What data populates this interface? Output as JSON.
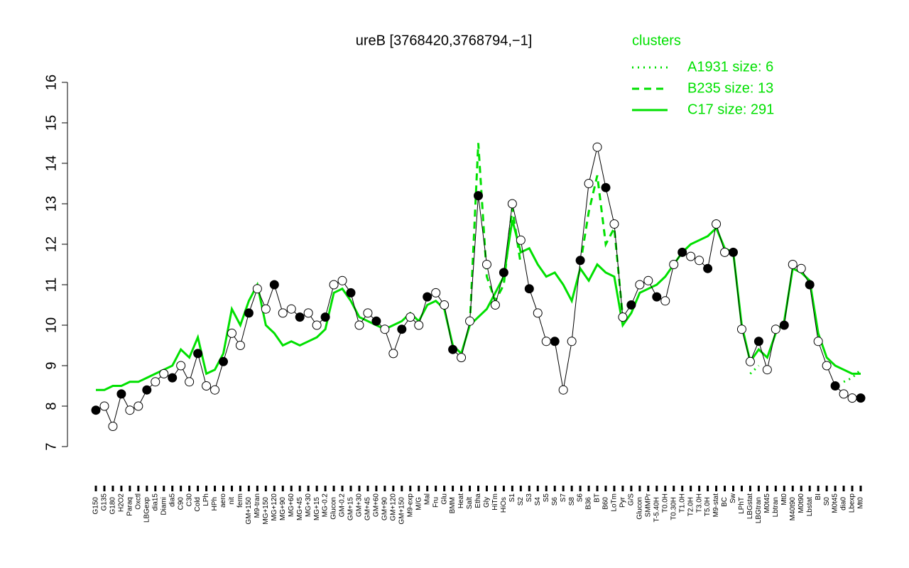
{
  "chart_data": {
    "type": "line",
    "title": "ureB [3768420,3768794,−1]",
    "legend_title": "clusters",
    "legend_position": "top right",
    "categories": [
      "G150",
      "G135",
      "G180",
      "H2O2",
      "Paraq",
      "Oxctl",
      "LBGexp",
      "dia15",
      "Diami",
      "dia5",
      "C90",
      "C30",
      "Cold",
      "LPh",
      "HPh",
      "aero",
      "nit",
      "ferm",
      "GM+150",
      "M9-tran",
      "MG+150",
      "MG+120",
      "MG+90",
      "MG+60",
      "MG+45",
      "MG+30",
      "MG+15",
      "MG-0.2",
      "Glucon",
      "GM-0.2",
      "GM+15",
      "GM+30",
      "GM+45",
      "GM+60",
      "GM+90",
      "GM+120",
      "GM+150",
      "M9-exp",
      "M/G",
      "Mal",
      "Fru",
      "Glu",
      "BMM",
      "Heat",
      "Salt",
      "Etha",
      "Gly",
      "HiTm",
      "HiOs",
      "S1",
      "S2",
      "S3",
      "S4",
      "S5",
      "S6",
      "S7",
      "S8",
      "S6",
      "B36",
      "BT",
      "B60",
      "LoTm",
      "Pyr",
      "G/S",
      "Glucon",
      "SMMPr",
      "T-5.40H",
      "T0.0H",
      "T0.30H",
      "T1.0H",
      "T2.0H",
      "T3.0H",
      "T5.0H",
      "M9-stat",
      "BC",
      "Sw",
      "LPhT",
      "LBGstat",
      "LBGtran",
      "M0t45",
      "Lbtran",
      "Mt0",
      "M40t90",
      "M0t90",
      "Lbstat",
      "BI",
      "S0",
      "M0t45",
      "dia0",
      "Lbexp",
      "Mt0"
    ],
    "values": [
      7.9,
      8.0,
      7.5,
      8.3,
      7.9,
      8.0,
      8.4,
      8.6,
      8.8,
      8.7,
      9.0,
      8.6,
      9.3,
      8.5,
      8.4,
      9.1,
      9.8,
      9.5,
      10.3,
      10.9,
      10.4,
      11.0,
      10.3,
      10.4,
      10.2,
      10.3,
      10.0,
      10.2,
      11.0,
      11.1,
      10.8,
      10.0,
      10.3,
      10.1,
      9.9,
      9.3,
      9.9,
      10.2,
      10.0,
      10.7,
      10.8,
      10.5,
      9.4,
      9.2,
      10.1,
      13.2,
      11.5,
      10.5,
      11.3,
      13.0,
      12.1,
      10.9,
      10.3,
      9.6,
      9.6,
      8.4,
      9.6,
      11.6,
      13.5,
      14.4,
      13.4,
      12.5,
      10.2,
      10.5,
      11.0,
      11.1,
      10.7,
      10.6,
      11.5,
      11.8,
      11.7,
      11.6,
      11.4,
      12.5,
      11.8,
      11.8,
      9.9,
      9.1,
      9.6,
      8.9,
      9.9,
      10.0,
      11.5,
      11.4,
      11.0,
      9.6,
      9.0,
      8.5,
      8.3,
      8.2,
      8.2
    ],
    "color": "#000000",
    "series": [
      {
        "name": "A1931 size: 6",
        "color": "#00e000",
        "dash": "dotted",
        "values": [
          null,
          null,
          null,
          null,
          null,
          null,
          null,
          null,
          null,
          null,
          null,
          null,
          null,
          null,
          null,
          null,
          null,
          null,
          null,
          null,
          null,
          null,
          null,
          null,
          null,
          null,
          null,
          null,
          null,
          null,
          null,
          null,
          null,
          null,
          null,
          null,
          null,
          null,
          null,
          null,
          null,
          null,
          null,
          null,
          null,
          null,
          null,
          null,
          null,
          null,
          null,
          null,
          null,
          null,
          null,
          null,
          null,
          null,
          null,
          null,
          null,
          null,
          null,
          null,
          null,
          null,
          null,
          null,
          null,
          null,
          null,
          null,
          null,
          null,
          null,
          null,
          null,
          8.8,
          9.0,
          null,
          null,
          null,
          null,
          null,
          null,
          null,
          null,
          null,
          8.6,
          8.7,
          8.9
        ]
      },
      {
        "name": "B235 size: 13",
        "color": "#00e000",
        "dash": "dashed",
        "values": [
          null,
          null,
          null,
          null,
          null,
          null,
          null,
          null,
          null,
          null,
          null,
          null,
          null,
          null,
          null,
          null,
          null,
          null,
          null,
          null,
          null,
          null,
          null,
          null,
          null,
          null,
          null,
          null,
          null,
          null,
          null,
          null,
          null,
          null,
          null,
          null,
          null,
          null,
          null,
          null,
          null,
          null,
          null,
          null,
          10.0,
          14.5,
          11.2,
          10.6,
          11.0,
          12.9,
          11.5,
          null,
          null,
          null,
          null,
          null,
          null,
          11.5,
          12.8,
          13.7,
          12.0,
          12.4,
          10.2,
          null,
          null,
          null,
          null,
          null,
          null,
          null,
          null,
          null,
          null,
          null,
          null,
          null,
          null,
          null,
          null,
          null,
          null,
          null,
          null,
          null,
          null,
          null,
          null,
          null,
          null,
          null,
          null
        ]
      },
      {
        "name": "C17 size: 291",
        "color": "#00e000",
        "dash": "solid",
        "values": [
          8.4,
          8.4,
          8.5,
          8.5,
          8.6,
          8.6,
          8.7,
          8.8,
          8.9,
          9.0,
          9.4,
          9.2,
          9.7,
          8.8,
          8.9,
          9.3,
          10.4,
          10.0,
          10.6,
          11.0,
          10.0,
          9.8,
          9.5,
          9.6,
          9.5,
          9.6,
          9.7,
          9.9,
          10.8,
          10.9,
          10.6,
          10.2,
          10.1,
          10.0,
          9.9,
          10.0,
          10.1,
          10.3,
          10.1,
          10.5,
          10.6,
          10.4,
          9.5,
          9.3,
          10.0,
          10.2,
          10.4,
          10.8,
          11.2,
          12.6,
          11.8,
          11.9,
          11.5,
          11.2,
          11.3,
          11.0,
          10.6,
          11.4,
          11.1,
          11.5,
          11.3,
          11.2,
          10.0,
          10.3,
          10.8,
          10.9,
          11.0,
          11.2,
          11.5,
          11.8,
          12.0,
          12.1,
          12.2,
          12.4,
          11.9,
          11.8,
          10.0,
          9.1,
          9.4,
          9.2,
          9.8,
          10.1,
          11.4,
          11.3,
          11.1,
          9.8,
          9.2,
          9.0,
          8.9,
          8.8,
          8.8
        ]
      }
    ],
    "ylim": [
      7,
      16
    ],
    "yticks": [
      7,
      8,
      9,
      10,
      11,
      12,
      13,
      14,
      15,
      16
    ]
  }
}
